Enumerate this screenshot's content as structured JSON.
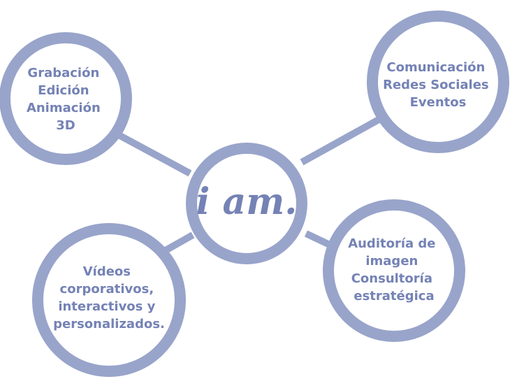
{
  "colors": {
    "ring": "#98a4ca",
    "text": "#7482b5",
    "fill": "#ffffff"
  },
  "center": {
    "label": "i am."
  },
  "nodes": {
    "top_left": [
      "Grabación",
      "Edición",
      "Animación",
      "3D"
    ],
    "top_right": [
      "Comunicación",
      "Redes Sociales",
      "Eventos"
    ],
    "bottom_left": [
      "Vídeos",
      "corporativos,",
      "interactivos y",
      "personalizados."
    ],
    "bottom_right": [
      "Auditoría de",
      "imagen",
      "Consultoría",
      "estratégica"
    ]
  }
}
